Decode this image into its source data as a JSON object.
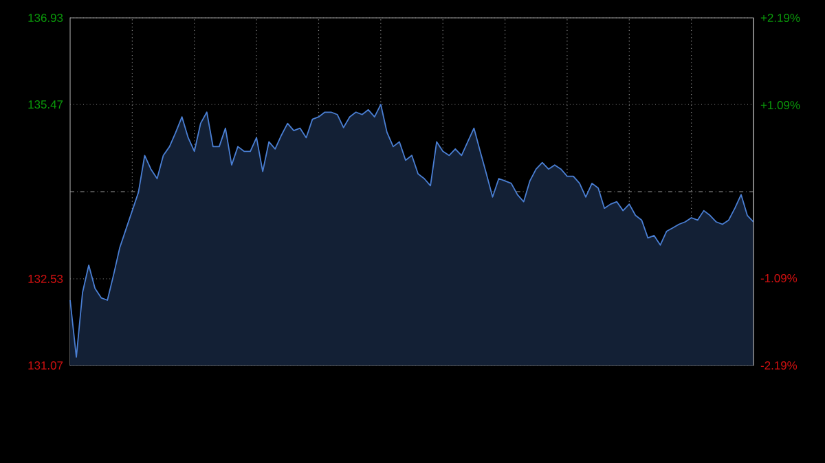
{
  "chart_data": {
    "type": "area",
    "categories": [
      null,
      null,
      null,
      null,
      null,
      null,
      null,
      null,
      null,
      null,
      null,
      null,
      null,
      null,
      null,
      null,
      null,
      null,
      null,
      null,
      null,
      null,
      null,
      null,
      null,
      null,
      null,
      null,
      null,
      null,
      null,
      null,
      null,
      null,
      null,
      null,
      null,
      null,
      null,
      null,
      null,
      null,
      null,
      null,
      null,
      null,
      null,
      null,
      null,
      null,
      null,
      null,
      null,
      null,
      null,
      null,
      null,
      null,
      null,
      null,
      null,
      null,
      null,
      null,
      null,
      null,
      null,
      null,
      null,
      null,
      null,
      null,
      null,
      null,
      null,
      null,
      null,
      null,
      null,
      null,
      null,
      null,
      null,
      null,
      null,
      null,
      null,
      null,
      null,
      null,
      null,
      null,
      null,
      null,
      null,
      null,
      null,
      null,
      null,
      null,
      null,
      null,
      null,
      null,
      null,
      null,
      null,
      null,
      null,
      null,
      null
    ],
    "series": [
      {
        "color": "#4a7fd4",
        "values": [
          132.17,
          131.21,
          132.3,
          132.76,
          132.37,
          132.21,
          132.17,
          132.6,
          133.06,
          133.37,
          133.68,
          133.99,
          134.61,
          134.38,
          134.22,
          134.61,
          134.76,
          135.0,
          135.26,
          134.91,
          134.68,
          135.15,
          135.34,
          134.76,
          134.76,
          135.07,
          134.45,
          134.76,
          134.68,
          134.68,
          134.91,
          134.34,
          134.84,
          134.72,
          134.95,
          135.15,
          135.03,
          135.07,
          134.91,
          135.22,
          135.26,
          135.34,
          135.34,
          135.3,
          135.08,
          135.26,
          135.34,
          135.3,
          135.38,
          135.26,
          135.47,
          135.0,
          134.76,
          134.84,
          134.53,
          134.61,
          134.3,
          134.22,
          134.1,
          134.84,
          134.68,
          134.61,
          134.72,
          134.61,
          134.84,
          135.07,
          134.68,
          134.3,
          133.91,
          134.22,
          134.18,
          134.14,
          133.95,
          133.83,
          134.18,
          134.38,
          134.49,
          134.38,
          134.45,
          134.38,
          134.26,
          134.26,
          134.14,
          133.91,
          134.14,
          134.06,
          133.72,
          133.79,
          133.83,
          133.68,
          133.79,
          133.6,
          133.52,
          133.22,
          133.26,
          133.1,
          133.33,
          133.39,
          133.45,
          133.49,
          133.56,
          133.52,
          133.68,
          133.6,
          133.49,
          133.45,
          133.52,
          133.72,
          133.95,
          133.6,
          133.49
        ]
      }
    ],
    "ylim": [
      131.07,
      136.93
    ],
    "yticks": [
      131.07,
      132.53,
      135.47,
      136.93
    ],
    "y2lim": [
      -2.19,
      2.19
    ],
    "y2ticks": [
      {
        "value": -2.19,
        "label": "-2.19%"
      },
      {
        "value": -1.09,
        "label": "-1.09%"
      },
      {
        "value": 1.09,
        "label": "+1.09%"
      },
      {
        "value": 2.19,
        "label": "+2.19%"
      }
    ],
    "ref_lines": [
      {
        "axis": "y",
        "value": 134.0,
        "color": "#9a9a9a",
        "line_style": "dashdotted"
      }
    ],
    "grid": true,
    "marker": "none",
    "line_style": "solid"
  }
}
